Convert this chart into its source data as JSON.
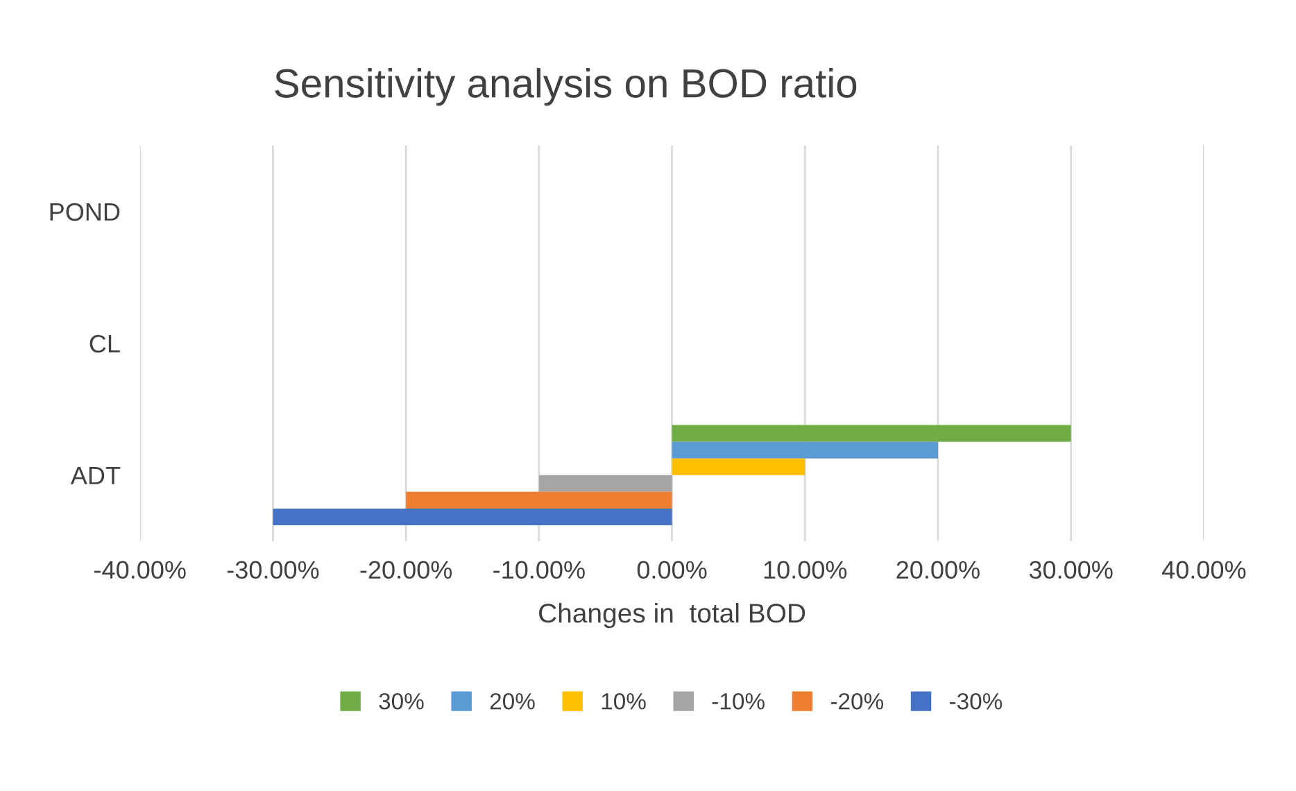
{
  "chart_data": {
    "type": "bar",
    "orientation": "horizontal",
    "title": "Sensitivity analysis on BOD ratio",
    "xlabel": "Changes in  total BOD",
    "categories": [
      "POND",
      "CL",
      "ADT"
    ],
    "series": [
      {
        "name": "30%",
        "color": "#70ad47",
        "values": [
          0,
          0,
          30
        ]
      },
      {
        "name": "20%",
        "color": "#5b9bd5",
        "values": [
          0,
          0,
          20
        ]
      },
      {
        "name": "10%",
        "color": "#ffc000",
        "values": [
          0,
          0,
          10
        ]
      },
      {
        "name": "-10%",
        "color": "#a5a5a5",
        "values": [
          0,
          0,
          -10
        ]
      },
      {
        "name": "-20%",
        "color": "#ed7d31",
        "values": [
          0,
          0,
          -20
        ]
      },
      {
        "name": "-30%",
        "color": "#4472c4",
        "values": [
          0,
          0,
          -30
        ]
      }
    ],
    "xlim": [
      -40,
      40
    ],
    "xticks": [
      {
        "value": -40,
        "label": "-40.00%"
      },
      {
        "value": -30,
        "label": "-30.00%"
      },
      {
        "value": -20,
        "label": "-20.00%"
      },
      {
        "value": -10,
        "label": "-10.00%"
      },
      {
        "value": 0,
        "label": "0.00%"
      },
      {
        "value": 10,
        "label": "10.00%"
      },
      {
        "value": 20,
        "label": "20.00%"
      },
      {
        "value": 30,
        "label": "30.00%"
      },
      {
        "value": 40,
        "label": "40.00%"
      }
    ],
    "grid": "x",
    "legend": "bottom"
  }
}
